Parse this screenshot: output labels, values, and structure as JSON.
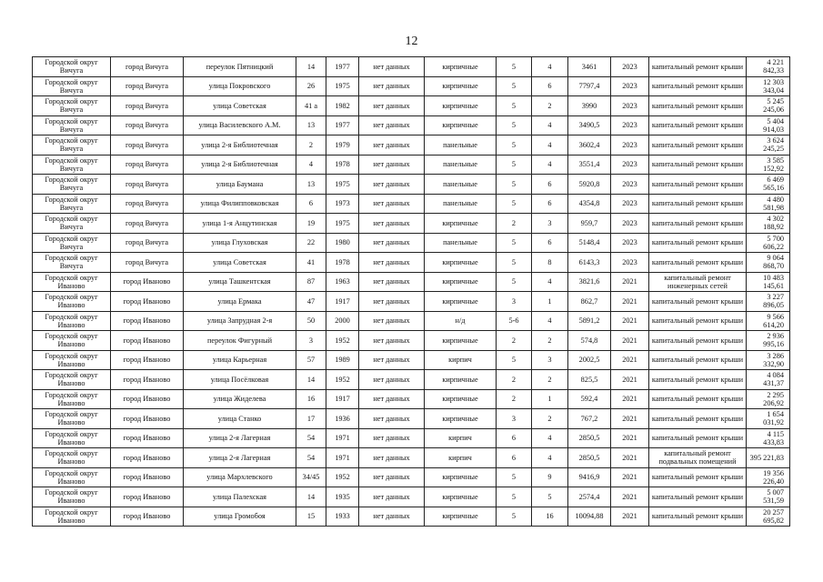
{
  "page_number": "12",
  "rows": [
    [
      "Городской округ Вичуга",
      "город Вичуга",
      "переулок Пятницкий",
      "14",
      "1977",
      "нет данных",
      "кирпичные",
      "5",
      "4",
      "3461",
      "2023",
      "капитальный ремонт крыши",
      "4 221 842,33"
    ],
    [
      "Городской округ Вичуга",
      "город Вичуга",
      "улица Покровского",
      "26",
      "1975",
      "нет данных",
      "кирпичные",
      "5",
      "6",
      "7797,4",
      "2023",
      "капитальный ремонт крыши",
      "12 303 343,04"
    ],
    [
      "Городской округ Вичуга",
      "город Вичуга",
      "улица Советская",
      "41 а",
      "1982",
      "нет данных",
      "кирпичные",
      "5",
      "2",
      "3990",
      "2023",
      "капитальный ремонт крыши",
      "5 245 245,06"
    ],
    [
      "Городской округ Вичуга",
      "город Вичуга",
      "улица Василевского А.М.",
      "13",
      "1977",
      "нет данных",
      "кирпичные",
      "5",
      "4",
      "3490,5",
      "2023",
      "капитальный ремонт крыши",
      "5 404 914,03"
    ],
    [
      "Городской округ Вичуга",
      "город Вичуга",
      "улица 2-я Библиотечная",
      "2",
      "1979",
      "нет данных",
      "панельные",
      "5",
      "4",
      "3602,4",
      "2023",
      "капитальный ремонт крыши",
      "3 624 245,25"
    ],
    [
      "Городской округ Вичуга",
      "город Вичуга",
      "улица 2-я Библиотечная",
      "4",
      "1978",
      "нет данных",
      "панельные",
      "5",
      "4",
      "3551,4",
      "2023",
      "капитальный ремонт крыши",
      "3 585 152,92"
    ],
    [
      "Городской округ Вичуга",
      "город Вичуга",
      "улица Баумана",
      "13",
      "1975",
      "нет данных",
      "панельные",
      "5",
      "6",
      "5920,8",
      "2023",
      "капитальный ремонт крыши",
      "6 469 565,16"
    ],
    [
      "Городской округ Вичуга",
      "город Вичуга",
      "улица Филипповковская",
      "6",
      "1973",
      "нет данных",
      "панельные",
      "5",
      "6",
      "4354,8",
      "2023",
      "капитальный ремонт крыши",
      "4 480 581,98"
    ],
    [
      "Городской округ Вичуга",
      "город Вичуга",
      "улица 1-я Анцутинская",
      "19",
      "1975",
      "нет данных",
      "кирпичные",
      "2",
      "3",
      "959,7",
      "2023",
      "капитальный ремонт крыши",
      "4 302 188,92"
    ],
    [
      "Городской округ Вичуга",
      "город Вичуга",
      "улица Глуховская",
      "22",
      "1980",
      "нет данных",
      "панельные",
      "5",
      "6",
      "5148,4",
      "2023",
      "капитальный ремонт крыши",
      "5 700 606,22"
    ],
    [
      "Городской округ Вичуга",
      "город Вичуга",
      "улица Советская",
      "41",
      "1978",
      "нет данных",
      "кирпичные",
      "5",
      "8",
      "6143,3",
      "2023",
      "капитальный ремонт крыши",
      "9 064 868,70"
    ],
    [
      "Городской округ Иваново",
      "город Иваново",
      "улица Ташкентская",
      "87",
      "1963",
      "нет данных",
      "кирпичные",
      "5",
      "4",
      "3821,6",
      "2021",
      "капитальный ремонт инженерных сетей",
      "10 483 145,61"
    ],
    [
      "Городской округ Иваново",
      "город Иваново",
      "улица Ермака",
      "47",
      "1917",
      "нет данных",
      "кирпичные",
      "3",
      "1",
      "862,7",
      "2021",
      "капитальный ремонт крыши",
      "3 227 896,05"
    ],
    [
      "Городской округ Иваново",
      "город Иваново",
      "улица Запрудная 2-я",
      "50",
      "2000",
      "нет данных",
      "н/д",
      "5-6",
      "4",
      "5891,2",
      "2021",
      "капитальный ремонт крыши",
      "9 566 614,20"
    ],
    [
      "Городской округ Иваново",
      "город Иваново",
      "переулок Фигурный",
      "3",
      "1952",
      "нет данных",
      "кирпичные",
      "2",
      "2",
      "574,8",
      "2021",
      "капитальный ремонт крыши",
      "2 936 995,16"
    ],
    [
      "Городской округ Иваново",
      "город Иваново",
      "улица Карьерная",
      "57",
      "1989",
      "нет данных",
      "кирпич",
      "5",
      "3",
      "2002,5",
      "2021",
      "капитальный ремонт крыши",
      "3 286 332,90"
    ],
    [
      "Городской округ Иваново",
      "город Иваново",
      "улица Посёлковая",
      "14",
      "1952",
      "нет данных",
      "кирпичные",
      "2",
      "2",
      "825,5",
      "2021",
      "капитальный ремонт крыши",
      "4 084 431,37"
    ],
    [
      "Городской округ Иваново",
      "город Иваново",
      "улица Жиделева",
      "16",
      "1917",
      "нет данных",
      "кирпичные",
      "2",
      "1",
      "592,4",
      "2021",
      "капитальный ремонт крыши",
      "2 295 206,92"
    ],
    [
      "Городской округ Иваново",
      "город Иваново",
      "улица Станко",
      "17",
      "1936",
      "нет данных",
      "кирпичные",
      "3",
      "2",
      "767,2",
      "2021",
      "капитальный ремонт крыши",
      "1 654 031,92"
    ],
    [
      "Городской округ Иваново",
      "город Иваново",
      "улица 2-я Лагерная",
      "54",
      "1971",
      "нет данных",
      "кирпич",
      "6",
      "4",
      "2850,5",
      "2021",
      "капитальный ремонт крыши",
      "4 115 433,83"
    ],
    [
      "Городской округ Иваново",
      "город Иваново",
      "улица 2-я Лагерная",
      "54",
      "1971",
      "нет данных",
      "кирпич",
      "6",
      "4",
      "2850,5",
      "2021",
      "капитальный ремонт подвальных помещений",
      "395 221,83"
    ],
    [
      "Городской округ Иваново",
      "город Иваново",
      "улица Мархлевского",
      "34/45",
      "1952",
      "нет данных",
      "кирпичные",
      "5",
      "9",
      "9416,9",
      "2021",
      "капитальный ремонт крыши",
      "19 356 226,40"
    ],
    [
      "Городской округ Иваново",
      "город Иваново",
      "улица Палехская",
      "14",
      "1935",
      "нет данных",
      "кирпичные",
      "5",
      "5",
      "2574,4",
      "2021",
      "капитальный ремонт крыши",
      "5 007 531,59"
    ],
    [
      "Городской округ Иваново",
      "город Иваново",
      "улица Громобоя",
      "15",
      "1933",
      "нет данных",
      "кирпичные",
      "5",
      "16",
      "10094,88",
      "2021",
      "капитальный ремонт крыши",
      "20 257 695,82"
    ]
  ]
}
